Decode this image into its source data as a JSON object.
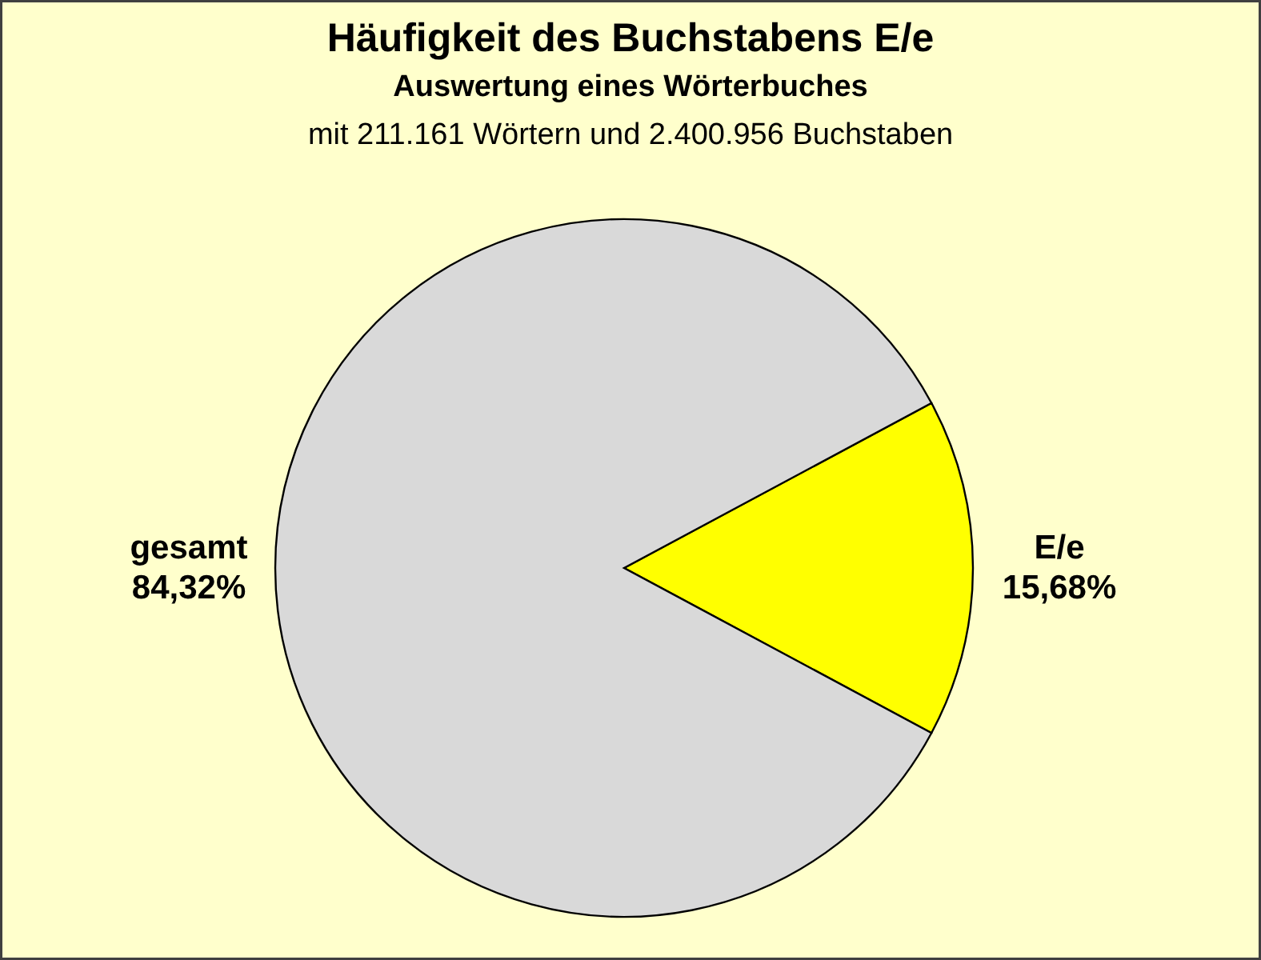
{
  "chart_data": {
    "type": "pie",
    "title": "Häufigkeit des Buchstabens E/e",
    "subtitle": "Auswertung eines Wörterbuches",
    "annotations": [
      "mit 211.161 Wörtern und 2.400.956 Buchstaben"
    ],
    "categories": [
      "E/e",
      "gesamt"
    ],
    "values": [
      15.68,
      84.32
    ],
    "colors": [
      "#ffff00",
      "#d9d9d9"
    ],
    "value_labels": [
      "15,68%",
      "84,32%"
    ]
  }
}
